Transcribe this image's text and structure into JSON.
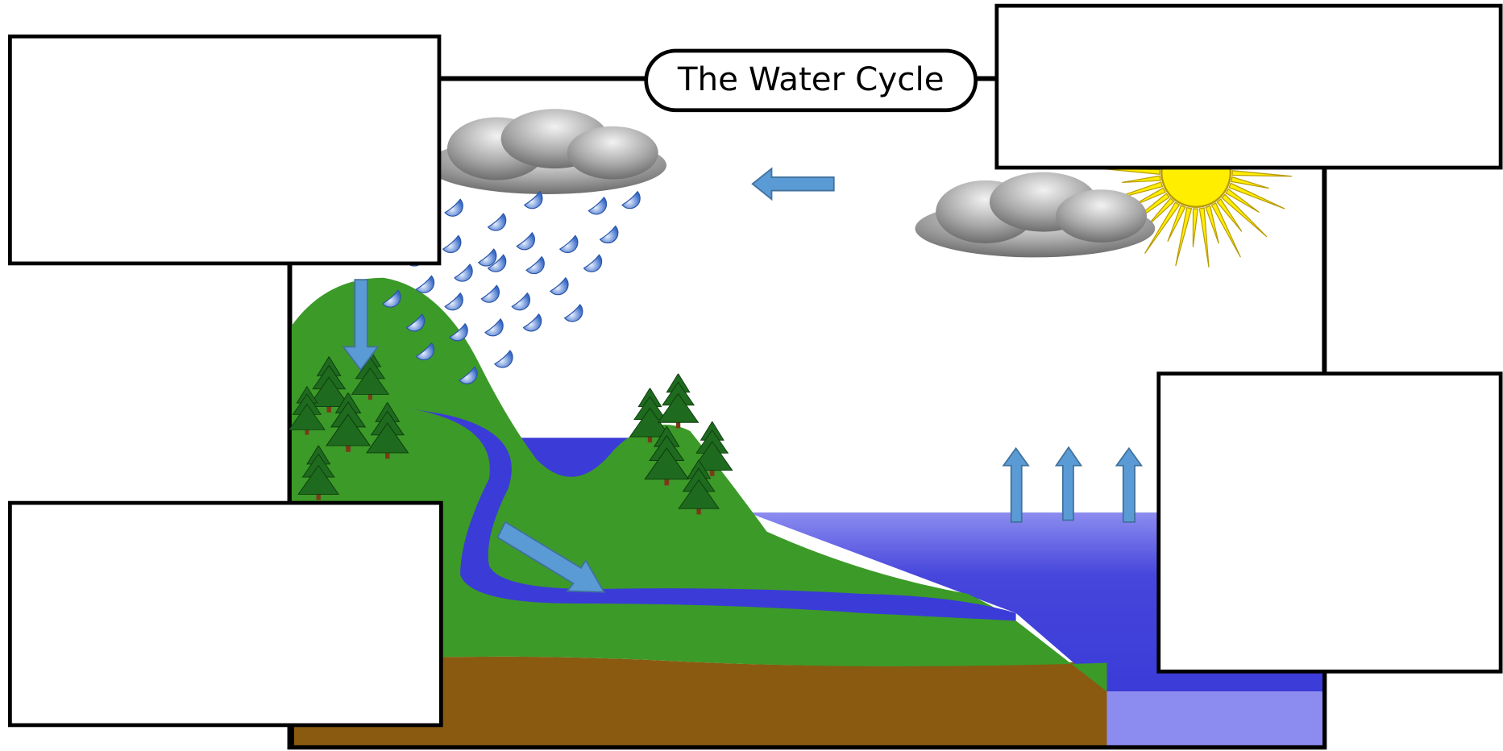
{
  "diagram": {
    "title": "The Water Cycle"
  }
}
